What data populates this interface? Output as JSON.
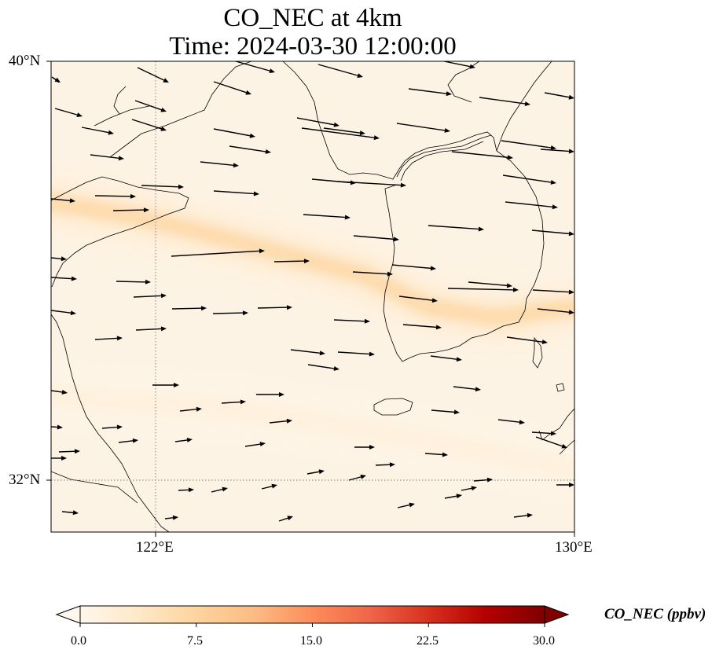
{
  "title": {
    "line1": "CO_NEC at 4km",
    "line2": "Time: 2024-03-30 12:00:00"
  },
  "axes": {
    "lat_ticks": [
      {
        "value": 40,
        "label": "40°N"
      },
      {
        "value": 32,
        "label": "32°N"
      }
    ],
    "lon_ticks": [
      {
        "value": 122,
        "label": "122°E"
      },
      {
        "value": 130,
        "label": "130°E"
      }
    ],
    "extent": {
      "lon": [
        120,
        130
      ],
      "lat": [
        31,
        40
      ]
    },
    "gridlines": "dotted"
  },
  "colorbar": {
    "label": "CO_NEC (ppbv)",
    "ticks": [
      "0.0",
      "7.5",
      "15.0",
      "22.5",
      "30.0"
    ],
    "range": [
      0,
      30
    ],
    "extend": "both",
    "colormap": "OrRd",
    "colors": [
      "#fff7ec",
      "#fee8c8",
      "#fdd49e",
      "#fdbb84",
      "#fc8d59",
      "#ef6548",
      "#d7301f",
      "#b30000",
      "#7f0000"
    ]
  },
  "colors": {
    "background": "#fdf3e4",
    "plume": "#fc8d59",
    "coastline": "#000000"
  },
  "chart_data": {
    "type": "heatmap",
    "variable": "CO_NEC",
    "level": "4km",
    "time": "2024-03-30 12:00:00",
    "units": "ppbv",
    "vmin": 0,
    "vmax": 30,
    "background_value": 1.0,
    "plume_bands": [
      {
        "path": [
          [
            120.0,
            37.3
          ],
          [
            121.5,
            37.05
          ],
          [
            123.0,
            36.7
          ],
          [
            124.5,
            36.3
          ],
          [
            126.0,
            35.9
          ],
          [
            127.2,
            35.3
          ],
          [
            128.5,
            35.1
          ],
          [
            130.0,
            35.3
          ]
        ],
        "peak_value": 8.5
      },
      {
        "path": [
          [
            120.0,
            33.6
          ],
          [
            123.5,
            33.35
          ],
          [
            127.0,
            32.8
          ],
          [
            130.0,
            32.2
          ]
        ],
        "peak_value": 2.0
      }
    ],
    "wind_vectors": "quiver field, predominantly westerly to west-northwesterly"
  }
}
